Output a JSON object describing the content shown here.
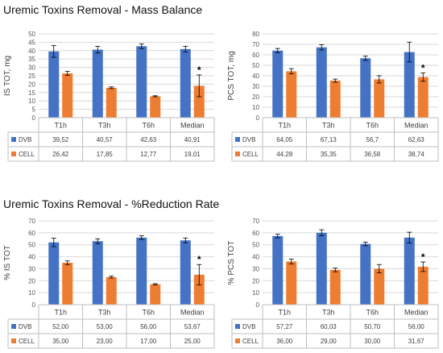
{
  "sections": [
    {
      "title": "Uremic Toxins Removal  - Mass Balance"
    },
    {
      "title": "Uremic Toxins Removal  - %Reduction Rate"
    }
  ],
  "colors": {
    "DVB": "#4472C4",
    "CELL": "#ED7D31",
    "grid": "#d9d9d9",
    "table": "#bfbfbf"
  },
  "chart_data": [
    {
      "type": "bar",
      "ylabel": "IS TOT, mg",
      "ylim": [
        0,
        50
      ],
      "ytick_step": 5,
      "categories": [
        "T1h",
        "T3h",
        "T6h",
        "Median"
      ],
      "series": [
        {
          "name": "DVB",
          "values": [
            39.52,
            40.57,
            42.63,
            40.91
          ],
          "errors": [
            3.5,
            2.0,
            1.4,
            1.7
          ],
          "labels": [
            "39,52",
            "40,57",
            "42,63",
            "40,91"
          ]
        },
        {
          "name": "CELL",
          "values": [
            26.42,
            17.85,
            12.77,
            19.01
          ],
          "errors": [
            1.2,
            0.5,
            0.3,
            6.5
          ],
          "labels": [
            "26,42",
            "17,85",
            "12,77",
            "19,01"
          ]
        }
      ],
      "annotations": [
        {
          "category": "Median",
          "series": "CELL",
          "text": "*"
        }
      ]
    },
    {
      "type": "bar",
      "ylabel": "PCS TOT, mg",
      "ylim": [
        0,
        80
      ],
      "ytick_step": 10,
      "categories": [
        "T1h",
        "T3h",
        "T6h",
        "Median"
      ],
      "series": [
        {
          "name": "DVB",
          "values": [
            64.05,
            67.13,
            56.7,
            62.63
          ],
          "errors": [
            2.0,
            2.5,
            2.0,
            9.5
          ],
          "labels": [
            "64,05",
            "67,13",
            "56,7",
            "62,63"
          ]
        },
        {
          "name": "CELL",
          "values": [
            44.28,
            35.35,
            36.58,
            38.74
          ],
          "errors": [
            2.5,
            1.5,
            3.5,
            4.0
          ],
          "labels": [
            "44,28",
            "35,35",
            "36,58",
            "38,74"
          ]
        }
      ],
      "annotations": [
        {
          "category": "Median",
          "series": "CELL",
          "text": "*"
        }
      ]
    },
    {
      "type": "bar",
      "ylabel": "% IS TOT",
      "ylim": [
        0,
        70
      ],
      "ytick_step": 10,
      "categories": [
        "T1h",
        "T3h",
        "T6h",
        "Median"
      ],
      "series": [
        {
          "name": "DVB",
          "values": [
            52.0,
            53.0,
            56.0,
            53.67
          ],
          "errors": [
            3.5,
            2.0,
            1.5,
            2.0
          ],
          "labels": [
            "52,00",
            "53,00",
            "56,00",
            "53,67"
          ]
        },
        {
          "name": "CELL",
          "values": [
            35.0,
            23.0,
            17.0,
            25.0
          ],
          "errors": [
            1.5,
            0.8,
            0.5,
            8.5
          ],
          "labels": [
            "35,00",
            "23,00",
            "17,00",
            "25,00"
          ]
        }
      ],
      "annotations": [
        {
          "category": "Median",
          "series": "CELL",
          "text": "*"
        }
      ]
    },
    {
      "type": "bar",
      "ylabel": "% PCS TOT",
      "ylim": [
        0,
        70
      ],
      "ytick_step": 10,
      "categories": [
        "T1h",
        "T3h",
        "T6h",
        "Median"
      ],
      "series": [
        {
          "name": "DVB",
          "values": [
            57.27,
            60.03,
            50.7,
            56.0
          ],
          "errors": [
            1.5,
            2.5,
            1.5,
            4.5
          ],
          "labels": [
            "57,27",
            "60,03",
            "50,70",
            "56,00"
          ]
        },
        {
          "name": "CELL",
          "values": [
            36.0,
            29.0,
            30.0,
            31.67
          ],
          "errors": [
            2.0,
            1.5,
            3.5,
            4.0
          ],
          "labels": [
            "36,00",
            "29,00",
            "30,00",
            "31,67"
          ]
        }
      ],
      "annotations": [
        {
          "category": "Median",
          "series": "CELL",
          "text": "*"
        }
      ]
    }
  ]
}
